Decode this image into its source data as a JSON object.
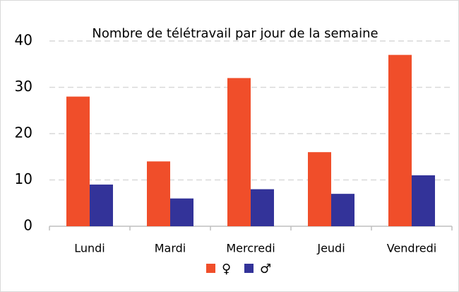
{
  "chart_data": {
    "type": "bar",
    "title": "Nombre de télétravail par jour de la semaine",
    "categories": [
      "Lundi",
      "Mardi",
      "Mercredi",
      "Jeudi",
      "Vendredi"
    ],
    "series": [
      {
        "name": "♀",
        "color": "#f04e2a",
        "values": [
          28,
          14,
          32,
          16,
          37
        ]
      },
      {
        "name": "♂",
        "color": "#333399",
        "values": [
          9,
          6,
          8,
          7,
          11
        ]
      }
    ],
    "ylim": [
      0,
      40
    ],
    "yticks": [
      0,
      10,
      20,
      30,
      40
    ],
    "grid": true,
    "legend": "bottom"
  }
}
